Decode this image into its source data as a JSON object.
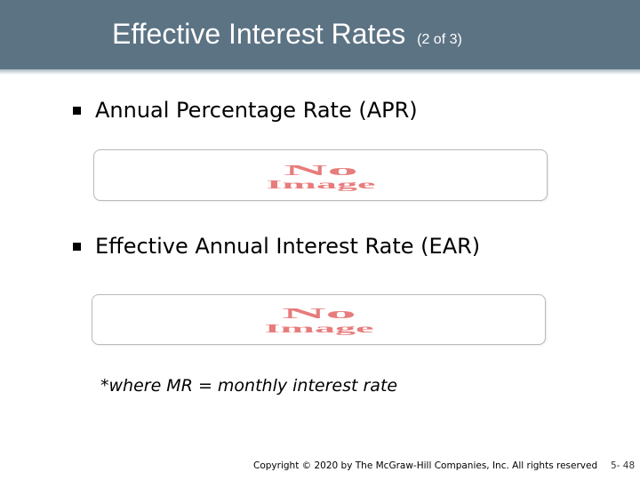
{
  "title": {
    "main": "Effective Interest Rates",
    "sub": "(2 of 3)"
  },
  "bullets": [
    "Annual Percentage Rate (APR)",
    "Effective Annual Interest Rate (EAR)"
  ],
  "image_placeholders": [
    {
      "line1": "No",
      "line2": "Image"
    },
    {
      "line1": "No",
      "line2": "Image"
    }
  ],
  "note": "*where MR = monthly interest rate",
  "footer": {
    "copyright": "Copyright © 2020 by The McGraw-Hill Companies, Inc. All rights reserved",
    "page": "5- 48"
  },
  "colors": {
    "title_bar": "#5c7384",
    "placeholder_text": "#e77c7c"
  }
}
